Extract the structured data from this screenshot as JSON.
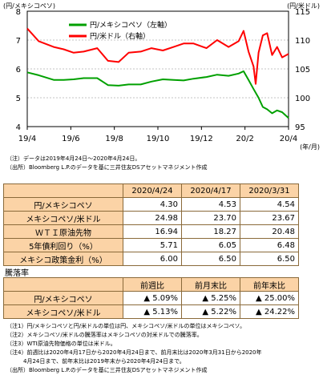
{
  "chart_data": {
    "type": "line",
    "y_left_label": "(円/メキシコペソ)",
    "y_right_label": "(円/米ドル)",
    "x_unit_label": "(年/月)",
    "x_ticks": [
      "19/4",
      "19/6",
      "19/8",
      "19/10",
      "19/12",
      "20/2",
      "20/4"
    ],
    "y_left_ticks": [
      "4",
      "5",
      "6",
      "7",
      "8"
    ],
    "y_right_ticks": [
      "95",
      "100",
      "105",
      "110",
      "115"
    ],
    "y_left_range": [
      4,
      8
    ],
    "y_right_range": [
      95,
      115
    ],
    "legend_position": "top-left-inside",
    "grid": "horizontal dashed",
    "series": [
      {
        "name": "円/メキシコペソ（左軸）",
        "axis": "left",
        "color": "#00a000",
        "x": [
          "2019-04-24",
          "2019-05-10",
          "2019-05-31",
          "2019-06-14",
          "2019-06-28",
          "2019-07-12",
          "2019-07-31",
          "2019-08-15",
          "2019-08-30",
          "2019-09-13",
          "2019-09-30",
          "2019-10-15",
          "2019-10-31",
          "2019-11-15",
          "2019-11-29",
          "2019-12-13",
          "2019-12-31",
          "2020-01-15",
          "2020-01-31",
          "2020-02-14",
          "2020-02-21",
          "2020-02-28",
          "2020-03-06",
          "2020-03-13",
          "2020-03-19",
          "2020-03-25",
          "2020-04-01",
          "2020-04-08",
          "2020-04-15",
          "2020-04-24"
        ],
        "values": [
          5.88,
          5.78,
          5.62,
          5.62,
          5.64,
          5.68,
          5.68,
          5.44,
          5.42,
          5.46,
          5.46,
          5.56,
          5.64,
          5.62,
          5.6,
          5.66,
          5.72,
          5.8,
          5.76,
          5.84,
          5.92,
          5.62,
          5.3,
          5.0,
          4.68,
          4.6,
          4.46,
          4.56,
          4.5,
          4.3
        ]
      },
      {
        "name": "円/米ドル（右軸）",
        "axis": "right",
        "color": "#ff0000",
        "x": [
          "2019-04-24",
          "2019-05-10",
          "2019-05-31",
          "2019-06-14",
          "2019-06-28",
          "2019-07-12",
          "2019-07-31",
          "2019-08-15",
          "2019-08-30",
          "2019-09-13",
          "2019-09-30",
          "2019-10-15",
          "2019-10-31",
          "2019-11-15",
          "2019-11-29",
          "2019-12-13",
          "2019-12-31",
          "2020-01-15",
          "2020-01-31",
          "2020-02-14",
          "2020-02-21",
          "2020-02-28",
          "2020-03-06",
          "2020-03-09",
          "2020-03-13",
          "2020-03-19",
          "2020-03-25",
          "2020-04-01",
          "2020-04-08",
          "2020-04-15",
          "2020-04-24"
        ],
        "values": [
          112.0,
          109.8,
          108.8,
          108.4,
          107.8,
          108.0,
          108.6,
          106.4,
          106.2,
          107.8,
          108.0,
          108.6,
          108.2,
          108.8,
          109.4,
          109.4,
          108.6,
          110.0,
          108.8,
          109.8,
          111.6,
          108.0,
          105.4,
          102.4,
          107.8,
          110.8,
          111.2,
          107.4,
          108.8,
          107.0,
          107.6
        ]
      }
    ]
  },
  "chart_notes": [
    "（注）データは2019年4月24日～2020年4月24日。",
    "（出所）Bloomberg L.P.のデータを基に三井住友DSアセットマネジメント作成"
  ],
  "table1": {
    "columns": [
      "2020/4/24",
      "2020/4/17",
      "2020/3/31"
    ],
    "rows": [
      {
        "label": "円/メキシコペソ",
        "values": [
          "4.30",
          "4.53",
          "4.54"
        ]
      },
      {
        "label": "メキシコペソ/米ドル",
        "values": [
          "24.98",
          "23.70",
          "23.67"
        ]
      },
      {
        "label": "ＷＴＩ原油先物",
        "values": [
          "16.94",
          "18.27",
          "20.48"
        ]
      },
      {
        "label": "5年債利回り（%）",
        "values": [
          "5.71",
          "6.05",
          "6.48"
        ]
      },
      {
        "label": "メキシコ政策金利（%）",
        "values": [
          "6.00",
          "6.50",
          "6.50"
        ]
      }
    ]
  },
  "section_title": "騰落率",
  "table2": {
    "columns": [
      "前週比",
      "前月末比",
      "前年末比"
    ],
    "rows": [
      {
        "label": "円/メキシコペソ",
        "values": [
          "▲ 5.09%",
          "▲ 5.25%",
          "▲ 25.00%"
        ]
      },
      {
        "label": "メキシコペソ/米ドル",
        "values": [
          "▲ 5.13%",
          "▲ 5.22%",
          "▲ 24.22%"
        ]
      }
    ]
  },
  "table_notes": [
    "（注1）円/メキシコペソと円/米ドルの単位は円、メキシコペソ/米ドルの単位はメキシコペソ。",
    "（注2）メキシコペソ/米ドルの騰落率はメキシコペソの対米ドルでの騰落率。",
    "（注3）WTI原油先物価格の単位は米ドル。",
    "（注4）前週比は2020年4月17日から2020年4月24日まで、前月末比は2020年3月31日から2020年",
    "　　　4月24日まで、前年末比は2019年末から2020年4月24日まで。",
    "（出所）Bloomberg L.P.のデータを基に三井住友DSアセットマネジメント作成"
  ]
}
